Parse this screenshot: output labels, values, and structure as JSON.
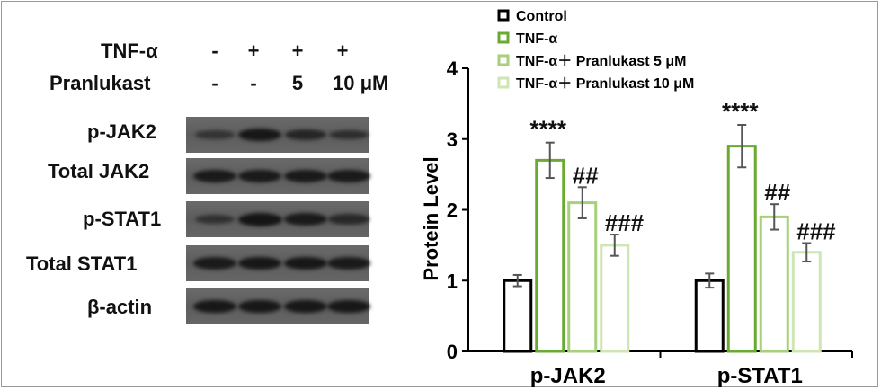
{
  "blot": {
    "conditions": [
      {
        "label": "TNF-α",
        "values": [
          "-",
          "+",
          "+",
          "+"
        ]
      },
      {
        "label": "Pranlukast",
        "values": [
          "-",
          "-",
          "5",
          "10 μM"
        ]
      }
    ],
    "rows": [
      {
        "label": "p-JAK2",
        "intensities": [
          0.35,
          0.85,
          0.6,
          0.45
        ]
      },
      {
        "label": "Total JAK2",
        "intensities": [
          0.8,
          0.8,
          0.8,
          0.8
        ]
      },
      {
        "label": "p-STAT1",
        "intensities": [
          0.4,
          0.9,
          0.8,
          0.55
        ]
      },
      {
        "label": "Total STAT1",
        "intensities": [
          0.8,
          0.85,
          0.85,
          0.8
        ]
      },
      {
        "label": "β-actin",
        "intensities": [
          0.85,
          0.85,
          0.85,
          0.85
        ]
      }
    ]
  },
  "chart_data": {
    "type": "bar",
    "categories": [
      "p-JAK2",
      "p-STAT1"
    ],
    "series": [
      {
        "name": "Control",
        "values": [
          1.0,
          1.0
        ],
        "errors": [
          0.08,
          0.1
        ],
        "color": "#000000"
      },
      {
        "name": "TNF-α",
        "values": [
          2.7,
          2.9
        ],
        "errors": [
          0.25,
          0.3
        ],
        "color": "#6aaa30"
      },
      {
        "name": "TNF-α＋ Pranlukast   5 μM",
        "values": [
          2.1,
          1.9
        ],
        "errors": [
          0.22,
          0.18
        ],
        "color": "#a6d07a"
      },
      {
        "name": "TNF-α＋ Pranlukast 10 μM",
        "values": [
          1.5,
          1.4
        ],
        "errors": [
          0.15,
          0.13
        ],
        "color": "#cde6b3"
      }
    ],
    "annotations": [
      {
        "text": "****",
        "category": 0,
        "series": 1
      },
      {
        "text": "##",
        "category": 0,
        "series": 2
      },
      {
        "text": "###",
        "category": 0,
        "series": 3
      },
      {
        "text": "****",
        "category": 1,
        "series": 1
      },
      {
        "text": "##",
        "category": 1,
        "series": 2
      },
      {
        "text": "###",
        "category": 1,
        "series": 3
      }
    ],
    "ylabel": "Protein Level",
    "xlabel": "",
    "ylim": [
      0,
      4
    ],
    "yticks": [
      0,
      1,
      2,
      3,
      4
    ],
    "grid": false,
    "legend_position": "top"
  }
}
